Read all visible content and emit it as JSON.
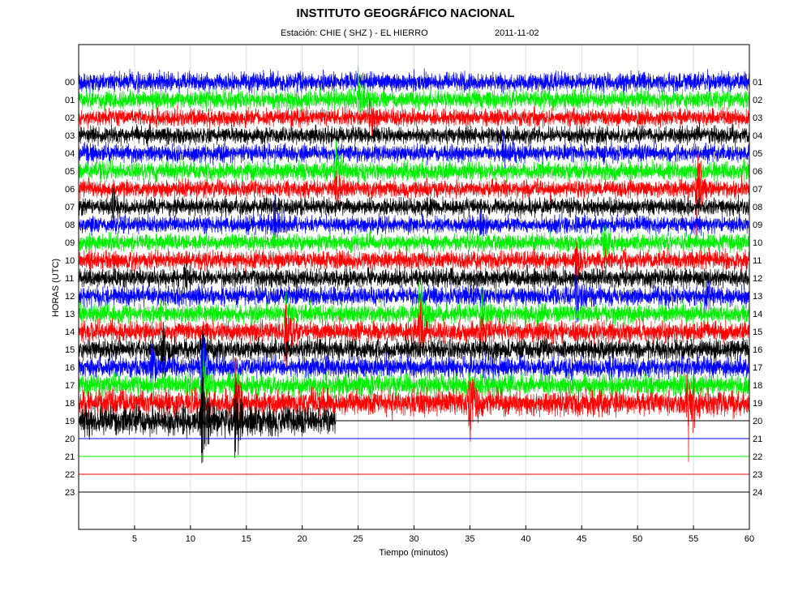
{
  "header": {
    "title": "INSTITUTO GEOGRÁFICO NACIONAL",
    "station": "Estación:  CHIE ( SHZ ) - EL HIERRO",
    "date": "2011-11-02"
  },
  "chart_data": {
    "type": "line",
    "title": "INSTITUTO GEOGRÁFICO NACIONAL",
    "xlabel": "Tiempo (minutos)",
    "ylabel": "HORAS (UTC)",
    "xlim": [
      0,
      60
    ],
    "x_ticks": [
      5,
      10,
      15,
      20,
      25,
      30,
      35,
      40,
      45,
      50,
      55,
      60
    ],
    "left_tick_labels": [
      "00",
      "01",
      "02",
      "03",
      "04",
      "05",
      "06",
      "07",
      "08",
      "09",
      "10",
      "11",
      "12",
      "13",
      "14",
      "15",
      "16",
      "17",
      "18",
      "19",
      "20",
      "21",
      "22",
      "23"
    ],
    "right_tick_labels": [
      "01",
      "02",
      "03",
      "04",
      "05",
      "06",
      "07",
      "08",
      "09",
      "10",
      "11",
      "12",
      "13",
      "14",
      "15",
      "16",
      "17",
      "18",
      "19",
      "20",
      "21",
      "22",
      "23",
      "24"
    ],
    "grid": "vertical",
    "trace_colors": [
      "#0000ff",
      "#00ee00",
      "#ff0000",
      "#000000"
    ],
    "recording_end": {
      "hour": 19,
      "minute": 23
    },
    "series": [
      {
        "hour": 0,
        "amplitude": 1.2,
        "events": []
      },
      {
        "hour": 1,
        "amplitude": 1.2,
        "events": [
          [
            25,
            0.9
          ]
        ]
      },
      {
        "hour": 2,
        "amplitude": 1.1,
        "events": [
          [
            26,
            0.8
          ]
        ]
      },
      {
        "hour": 3,
        "amplitude": 1.1,
        "events": []
      },
      {
        "hour": 4,
        "amplitude": 1.1,
        "events": [
          [
            38,
            0.6
          ]
        ]
      },
      {
        "hour": 5,
        "amplitude": 1.2,
        "events": [
          [
            23,
            0.7
          ]
        ]
      },
      {
        "hour": 6,
        "amplitude": 1.1,
        "events": [
          [
            55.3,
            1.9
          ],
          [
            23,
            0.7
          ]
        ]
      },
      {
        "hour": 7,
        "amplitude": 1.1,
        "events": [
          [
            3,
            0.6
          ]
        ]
      },
      {
        "hour": 8,
        "amplitude": 1.1,
        "events": [
          [
            17.5,
            0.8
          ],
          [
            36,
            0.6
          ]
        ]
      },
      {
        "hour": 9,
        "amplitude": 1.1,
        "events": [
          [
            47,
            0.7
          ]
        ]
      },
      {
        "hour": 10,
        "amplitude": 1.2,
        "events": [
          [
            44.5,
            0.9
          ]
        ]
      },
      {
        "hour": 11,
        "amplitude": 1.2,
        "events": [
          [
            9.5,
            0.7
          ]
        ]
      },
      {
        "hour": 12,
        "amplitude": 1.2,
        "events": [
          [
            44.5,
            0.9
          ],
          [
            56,
            0.6
          ]
        ]
      },
      {
        "hour": 13,
        "amplitude": 1.2,
        "events": [
          [
            30.5,
            1.5
          ],
          [
            36,
            0.8
          ],
          [
            18.5,
            0.7
          ]
        ]
      },
      {
        "hour": 14,
        "amplitude": 1.3,
        "events": [
          [
            18.5,
            1.6
          ],
          [
            30.5,
            0.9
          ],
          [
            36,
            0.6
          ]
        ]
      },
      {
        "hour": 15,
        "amplitude": 1.3,
        "events": [
          [
            7.5,
            1.0
          ],
          [
            11,
            0.8
          ]
        ]
      },
      {
        "hour": 16,
        "amplitude": 1.3,
        "events": [
          [
            6.5,
            0.8
          ],
          [
            11,
            1.5
          ]
        ]
      },
      {
        "hour": 17,
        "amplitude": 1.4,
        "events": [
          [
            11,
            1.3
          ],
          [
            14,
            0.9
          ]
        ]
      },
      {
        "hour": 18,
        "amplitude": 1.6,
        "events": [
          [
            35,
            1.2
          ],
          [
            54.5,
            1.2
          ],
          [
            14,
            0.9
          ]
        ]
      },
      {
        "hour": 19,
        "amplitude": 1.8,
        "events": [
          [
            11,
            1.4
          ],
          [
            14,
            1.2
          ]
        ]
      },
      {
        "hour": 20,
        "amplitude": 0,
        "events": []
      },
      {
        "hour": 21,
        "amplitude": 0,
        "events": []
      },
      {
        "hour": 22,
        "amplitude": 0,
        "events": []
      },
      {
        "hour": 23,
        "amplitude": 0,
        "events": []
      }
    ]
  }
}
